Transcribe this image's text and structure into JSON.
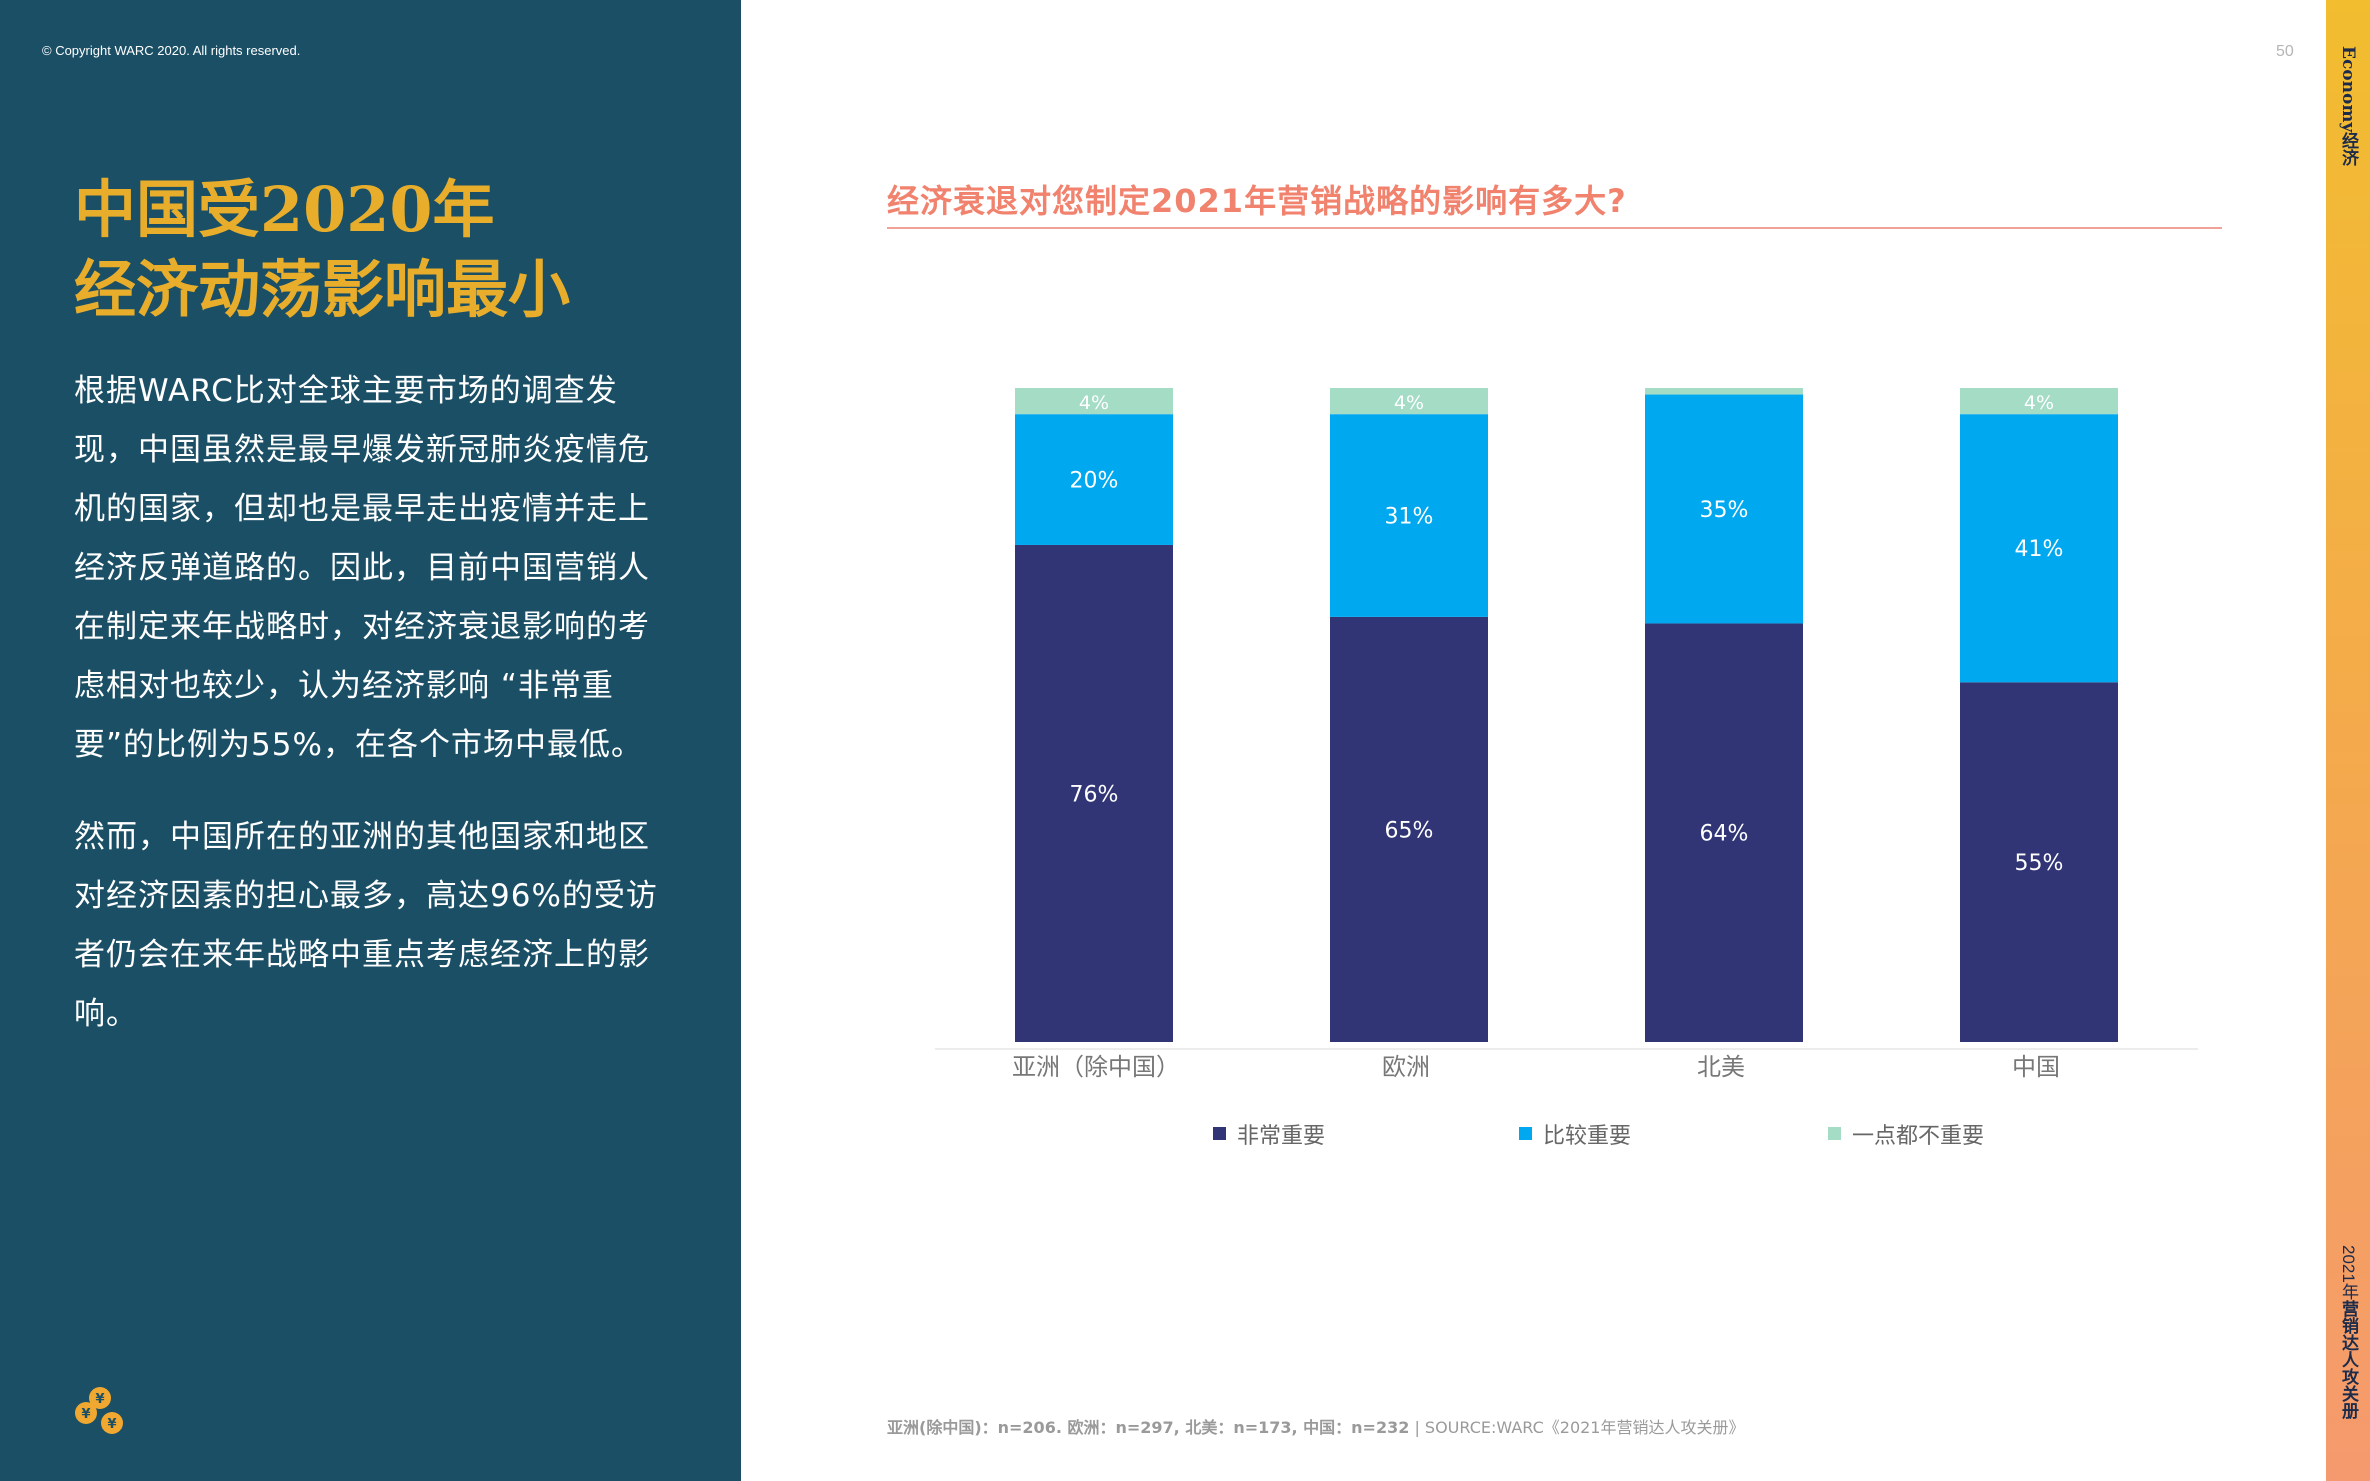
{
  "copyright": "© Copyright WARC 2020. All rights reserved.",
  "page_number": "50",
  "headline": {
    "line1": "中国受2020年",
    "line2": "经济动荡影响最小"
  },
  "body": {
    "paragraph1": "根据WARC比对全球主要市场的调查发现，中国虽然是最早爆发新冠肺炎疫情危机的国家，但却也是最早走出疫情并走上经济反弹道路的。因此，目前中国营销人在制定来年战略时，对经济衰退影响的考虑相对也较少，认为经济影响 “非常重要”的比例为55%，在各个市场中最低。",
    "paragraph2": "然而，中国所在的亚洲的其他国家和地区对经济因素的担心最多，高达96%的受访者仍会在来年战略中重点考虑经济上的影响。"
  },
  "side": {
    "section": "Economy经济",
    "book_prefix": "2021年",
    "book_title": "营销达人攻关册"
  },
  "source": {
    "sample": "亚洲(除中国)：n=206. 欧洲：n=297, 北美：n=173, 中国：n=232",
    "citation": " | SOURCE:WARC《2021年营销达人攻关册》"
  },
  "colors": {
    "panel": "#1b4f66",
    "headline": "#e8ae2b",
    "title": "#f0826e"
  },
  "chart_data": {
    "type": "bar",
    "stacked": true,
    "title": "经济衰退对您制定2021年营销战略的影响有多大?",
    "categories": [
      "亚洲（除中国）",
      "欧洲",
      "北美",
      "中国"
    ],
    "series": [
      {
        "name": "非常重要",
        "color": "#313575",
        "values": [
          76,
          65,
          64,
          55
        ],
        "labels": [
          "76%",
          "65%",
          "64%",
          "55%"
        ]
      },
      {
        "name": "比较重要",
        "color": "#00a8f0",
        "values": [
          20,
          31,
          35,
          41
        ],
        "labels": [
          "20%",
          "31%",
          "35%",
          "41%"
        ]
      },
      {
        "name": "一点都不重要",
        "color": "#a4dcc6",
        "values": [
          4,
          4,
          1,
          4
        ],
        "labels": [
          "4%",
          "4%",
          "",
          "4%"
        ]
      }
    ],
    "ylim": [
      0,
      100
    ],
    "legend_position": "bottom",
    "grid": false
  }
}
